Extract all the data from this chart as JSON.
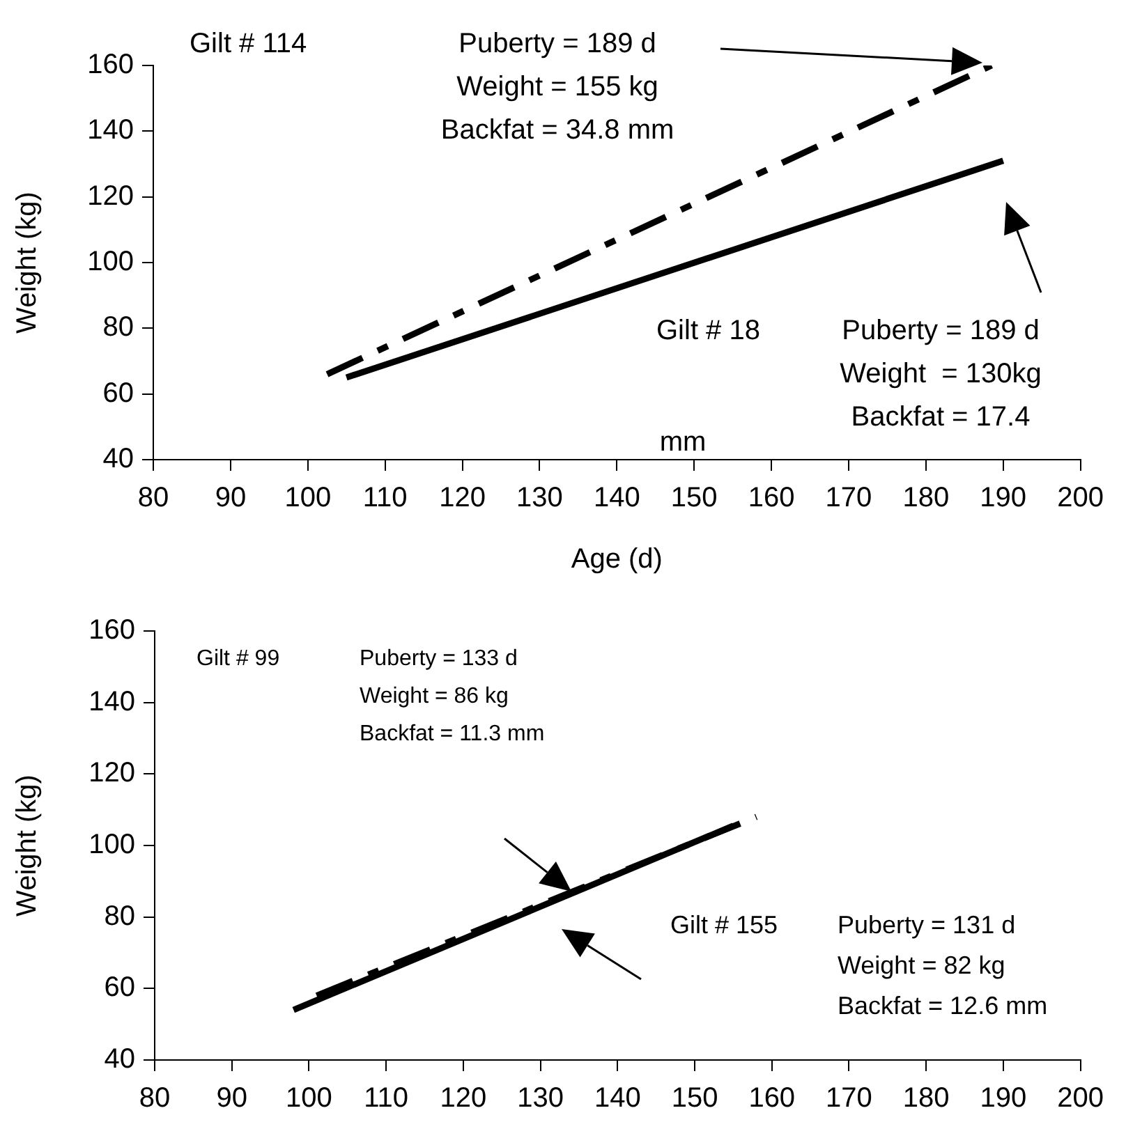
{
  "chart_data": [
    {
      "type": "line",
      "xlabel": "Age (d)",
      "ylabel": "Weight (kg)",
      "xlim": [
        80,
        200
      ],
      "xticks": [
        80,
        90,
        100,
        110,
        120,
        130,
        140,
        150,
        160,
        170,
        180,
        190,
        200
      ],
      "ylim": [
        40,
        160
      ],
      "yticks": [
        40,
        60,
        80,
        100,
        120,
        140,
        160
      ],
      "grid": false,
      "legend": false,
      "marker": "none",
      "series": [
        {
          "color": "#000000",
          "line_style": "dashed",
          "x": [
            102.5,
            188.5
          ],
          "values": [
            66,
            160
          ]
        },
        {
          "color": "#000000",
          "line_style": "solid",
          "x": [
            105,
            190
          ],
          "values": [
            65,
            131
          ]
        }
      ],
      "annotations": [
        "Gilt # 114",
        "Puberty = 189 d\nWeight = 155 kg\nBackfat = 34.8 mm",
        "Gilt # 18",
        "Puberty = 189 d\nWeight  = 130kg\nBackfat = 17.4",
        "mm"
      ]
    },
    {
      "type": "line",
      "ylabel": "Weight (kg)",
      "xlim": [
        80,
        200
      ],
      "xticks": [
        80,
        90,
        100,
        110,
        120,
        130,
        140,
        150,
        160,
        170,
        180,
        190,
        200
      ],
      "ylim": [
        40,
        160
      ],
      "yticks": [
        40,
        60,
        80,
        100,
        120,
        140,
        160
      ],
      "grid": false,
      "legend": false,
      "marker": "none",
      "series": [
        {
          "color": "#000000",
          "line_style": "dashed",
          "x": [
            101,
            158
          ],
          "values": [
            58,
            108
          ]
        },
        {
          "color": "#000000",
          "line_style": "solid",
          "x": [
            98,
            155
          ],
          "values": [
            54,
            105.5
          ]
        }
      ],
      "annotations": [
        "Gilt # 99",
        "Puberty = 133 d\nWeight = 86 kg\nBackfat = 11.3 mm",
        "Gilt # 155",
        "Puberty = 131 d\nWeight = 82 kg\nBackfat = 12.6 mm"
      ]
    }
  ]
}
